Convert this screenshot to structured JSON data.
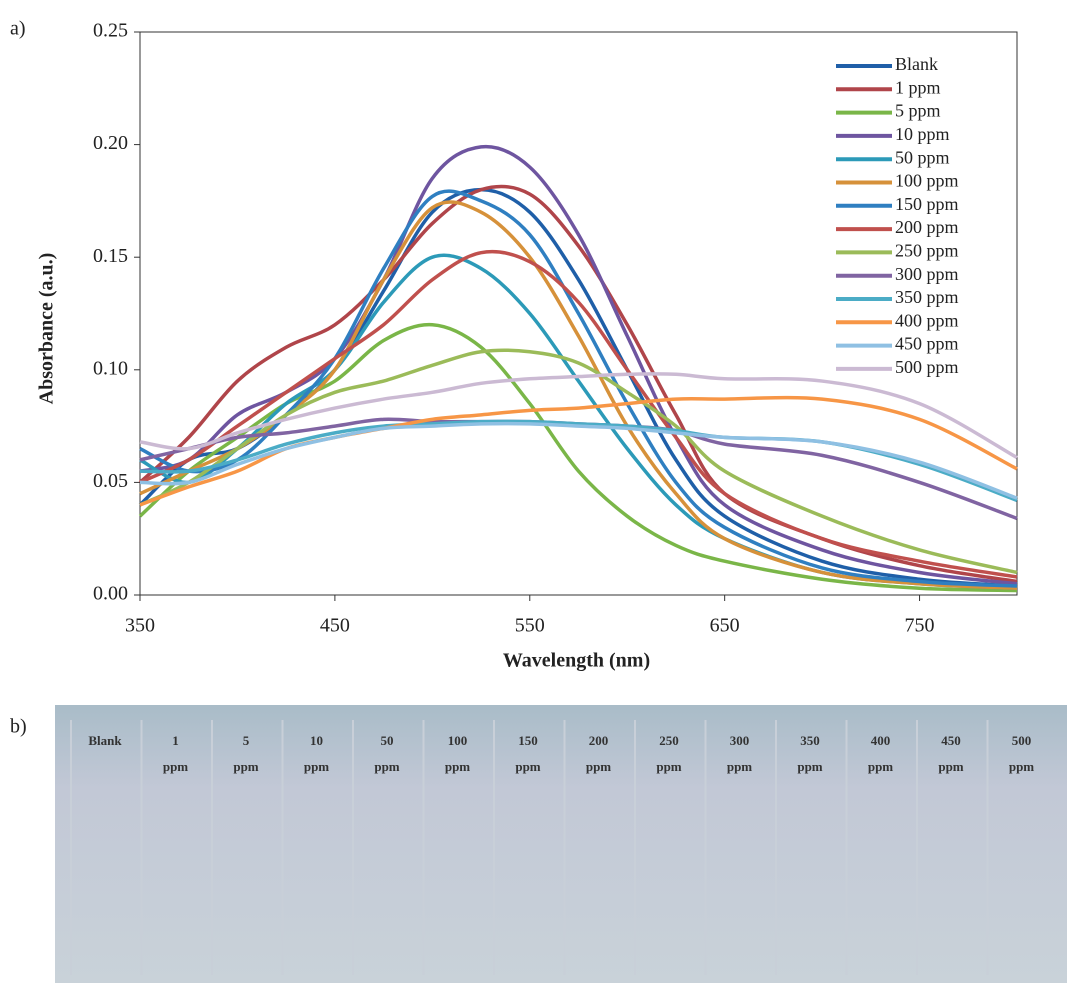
{
  "panel_labels": [
    "a)",
    "b)"
  ],
  "chart_data": {
    "type": "line",
    "xlabel": "Wavelength (nm)",
    "ylabel": "Absorbance (a.u.)",
    "xlim": [
      350,
      800
    ],
    "xticks": [
      350,
      450,
      550,
      650,
      750
    ],
    "ylim": [
      0,
      0.25
    ],
    "yticks": [
      {
        "value": 0,
        "label": "0.00"
      },
      0.05,
      {
        "value": 0.1,
        "label": "0.10"
      },
      0.15,
      {
        "value": 0.2,
        "label": "0.20"
      },
      0.25
    ],
    "legend": "top-right",
    "x": [
      350,
      375,
      400,
      425,
      450,
      475,
      500,
      525,
      550,
      575,
      600,
      625,
      650,
      700,
      750,
      800
    ],
    "series": [
      {
        "name": "Blank",
        "color": "#1f5fa8",
        "values": [
          0.04,
          0.06,
          0.065,
          0.08,
          0.1,
          0.135,
          0.17,
          0.18,
          0.17,
          0.14,
          0.1,
          0.06,
          0.035,
          0.015,
          0.007,
          0.004
        ]
      },
      {
        "name": "1 ppm",
        "color": "#b0454a",
        "values": [
          0.05,
          0.07,
          0.095,
          0.11,
          0.12,
          0.14,
          0.165,
          0.18,
          0.178,
          0.155,
          0.12,
          0.08,
          0.045,
          0.025,
          0.013,
          0.006
        ]
      },
      {
        "name": "5 ppm",
        "color": "#7ab648",
        "values": [
          0.035,
          0.055,
          0.07,
          0.085,
          0.095,
          0.113,
          0.12,
          0.11,
          0.085,
          0.055,
          0.035,
          0.022,
          0.015,
          0.007,
          0.003,
          0.002
        ]
      },
      {
        "name": "10 ppm",
        "color": "#6e55a0",
        "values": [
          0.055,
          0.06,
          0.08,
          0.09,
          0.105,
          0.14,
          0.185,
          0.199,
          0.19,
          0.16,
          0.115,
          0.07,
          0.04,
          0.02,
          0.01,
          0.005
        ]
      },
      {
        "name": "50 ppm",
        "color": "#2c9ab8",
        "values": [
          0.06,
          0.05,
          0.065,
          0.085,
          0.1,
          0.13,
          0.15,
          0.145,
          0.125,
          0.095,
          0.065,
          0.04,
          0.025,
          0.01,
          0.005,
          0.003
        ]
      },
      {
        "name": "100 ppm",
        "color": "#d6913a",
        "values": [
          0.045,
          0.055,
          0.065,
          0.08,
          0.1,
          0.14,
          0.172,
          0.17,
          0.15,
          0.115,
          0.075,
          0.045,
          0.025,
          0.01,
          0.005,
          0.003
        ]
      },
      {
        "name": "150 ppm",
        "color": "#2f7fc1",
        "values": [
          0.065,
          0.055,
          0.06,
          0.08,
          0.105,
          0.145,
          0.177,
          0.175,
          0.16,
          0.125,
          0.085,
          0.05,
          0.03,
          0.012,
          0.006,
          0.004
        ]
      },
      {
        "name": "200 ppm",
        "color": "#c0504d",
        "values": [
          0.05,
          0.06,
          0.075,
          0.09,
          0.105,
          0.12,
          0.14,
          0.152,
          0.148,
          0.13,
          0.1,
          0.07,
          0.045,
          0.025,
          0.015,
          0.008
        ]
      },
      {
        "name": "250 ppm",
        "color": "#9bbb59",
        "values": [
          0.04,
          0.05,
          0.065,
          0.08,
          0.09,
          0.095,
          0.102,
          0.108,
          0.108,
          0.103,
          0.09,
          0.075,
          0.055,
          0.035,
          0.02,
          0.01
        ]
      },
      {
        "name": "300 ppm",
        "color": "#8064a2",
        "values": [
          0.06,
          0.065,
          0.07,
          0.072,
          0.075,
          0.078,
          0.077,
          0.077,
          0.077,
          0.076,
          0.075,
          0.073,
          0.067,
          0.062,
          0.05,
          0.034
        ]
      },
      {
        "name": "350 ppm",
        "color": "#4bacc6",
        "values": [
          0.055,
          0.055,
          0.06,
          0.067,
          0.072,
          0.075,
          0.076,
          0.077,
          0.077,
          0.076,
          0.075,
          0.073,
          0.07,
          0.068,
          0.058,
          0.042
        ]
      },
      {
        "name": "400 ppm",
        "color": "#f79646",
        "values": [
          0.04,
          0.048,
          0.055,
          0.065,
          0.07,
          0.074,
          0.078,
          0.08,
          0.082,
          0.083,
          0.085,
          0.087,
          0.087,
          0.087,
          0.078,
          0.056
        ]
      },
      {
        "name": "450 ppm",
        "color": "#8fc0e3",
        "values": [
          0.05,
          0.05,
          0.058,
          0.065,
          0.07,
          0.074,
          0.075,
          0.076,
          0.076,
          0.075,
          0.074,
          0.072,
          0.07,
          0.068,
          0.059,
          0.043
        ]
      },
      {
        "name": "500 ppm",
        "color": "#cbbad3",
        "values": [
          0.068,
          0.065,
          0.072,
          0.078,
          0.083,
          0.087,
          0.09,
          0.094,
          0.096,
          0.097,
          0.098,
          0.098,
          0.096,
          0.095,
          0.085,
          0.061
        ]
      }
    ]
  },
  "photo": {
    "vials": [
      [
        "Blank"
      ],
      [
        "1",
        "ppm"
      ],
      [
        "5",
        "ppm"
      ],
      [
        "10",
        "ppm"
      ],
      [
        "50",
        "ppm"
      ],
      [
        "100",
        "ppm"
      ],
      [
        "150",
        "ppm"
      ],
      [
        "200",
        "ppm"
      ],
      [
        "250",
        "ppm"
      ],
      [
        "300",
        "ppm"
      ],
      [
        "350",
        "ppm"
      ],
      [
        "400",
        "ppm"
      ],
      [
        "450",
        "ppm"
      ],
      [
        "500",
        "ppm"
      ]
    ]
  }
}
